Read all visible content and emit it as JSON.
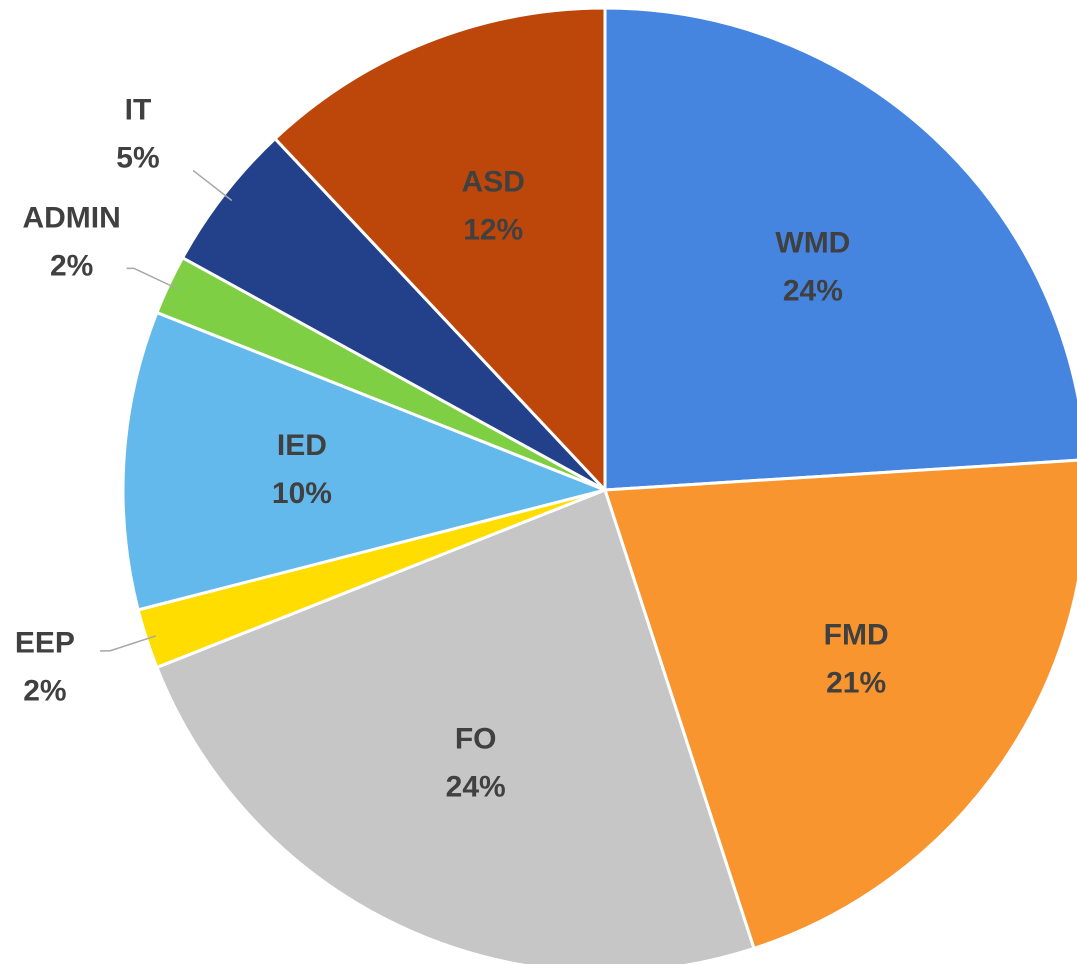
{
  "chart_data": {
    "type": "pie",
    "categories": [
      "WMD",
      "FMD",
      "FO",
      "EEP",
      "IED",
      "ADMIN",
      "IT",
      "ASD"
    ],
    "values": [
      24,
      21,
      24,
      2,
      10,
      2,
      5,
      12
    ],
    "value_labels": [
      "24%",
      "21%",
      "24%",
      "2%",
      "10%",
      "2%",
      "5%",
      "12%"
    ],
    "colors": [
      "#4585e0",
      "#f8952f",
      "#c6c6c6",
      "#ffdd00",
      "#63b9ec",
      "#7fcf45",
      "#23408a",
      "#bd470a"
    ]
  }
}
